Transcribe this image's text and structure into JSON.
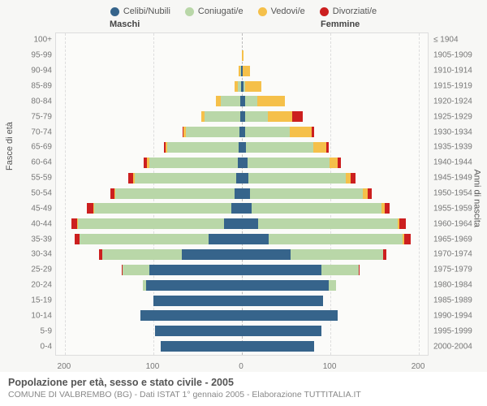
{
  "chart": {
    "type": "population-pyramid",
    "background_color": "#f7f7f5",
    "plot_background": "#fbfbf9",
    "grid_color": "#dddddd",
    "center_line_color": "#bbbbbb",
    "text_color": "#777777",
    "legend": [
      {
        "label": "Celibi/Nubili",
        "color": "#36648b"
      },
      {
        "label": "Coniugati/e",
        "color": "#b9d7a8"
      },
      {
        "label": "Vedovi/e",
        "color": "#f5c04a"
      },
      {
        "label": "Divorziati/e",
        "color": "#cc1f1f"
      }
    ],
    "header_male": "Maschi",
    "header_female": "Femmine",
    "axis_left_title": "Fasce di età",
    "axis_right_title": "Anni di nascita",
    "x_ticks": [
      -200,
      -100,
      0,
      100,
      200
    ],
    "x_tick_labels": [
      "200",
      "100",
      "0",
      "100",
      "200"
    ],
    "x_max": 210,
    "footer_title": "Popolazione per età, sesso e stato civile - 2005",
    "footer_sub": "COMUNE DI VALBREMBO (BG) - Dati ISTAT 1° gennaio 2005 - Elaborazione TUTTITALIA.IT",
    "rows": [
      {
        "age": "100+",
        "year": "≤ 1904",
        "m": [
          0,
          0,
          0,
          0
        ],
        "f": [
          0,
          0,
          0,
          0
        ]
      },
      {
        "age": "95-99",
        "year": "1905-1909",
        "m": [
          0,
          0,
          0,
          0
        ],
        "f": [
          0,
          0,
          2,
          0
        ]
      },
      {
        "age": "90-94",
        "year": "1910-1914",
        "m": [
          1,
          1,
          2,
          0
        ],
        "f": [
          1,
          0,
          8,
          0
        ]
      },
      {
        "age": "85-89",
        "year": "1915-1919",
        "m": [
          1,
          4,
          3,
          0
        ],
        "f": [
          2,
          2,
          18,
          0
        ]
      },
      {
        "age": "80-84",
        "year": "1920-1924",
        "m": [
          2,
          22,
          5,
          0
        ],
        "f": [
          4,
          13,
          32,
          0
        ]
      },
      {
        "age": "75-79",
        "year": "1925-1929",
        "m": [
          2,
          40,
          4,
          0
        ],
        "f": [
          4,
          25,
          28,
          12
        ]
      },
      {
        "age": "70-74",
        "year": "1930-1934",
        "m": [
          3,
          60,
          3,
          1
        ],
        "f": [
          4,
          50,
          25,
          3
        ]
      },
      {
        "age": "65-69",
        "year": "1935-1939",
        "m": [
          4,
          80,
          2,
          2
        ],
        "f": [
          5,
          76,
          14,
          3
        ]
      },
      {
        "age": "60-64",
        "year": "1940-1944",
        "m": [
          5,
          100,
          2,
          4
        ],
        "f": [
          6,
          93,
          9,
          4
        ]
      },
      {
        "age": "55-59",
        "year": "1945-1949",
        "m": [
          6,
          115,
          2,
          5
        ],
        "f": [
          7,
          110,
          6,
          5
        ]
      },
      {
        "age": "50-54",
        "year": "1950-1954",
        "m": [
          8,
          135,
          1,
          5
        ],
        "f": [
          9,
          128,
          5,
          5
        ]
      },
      {
        "age": "45-49",
        "year": "1955-1959",
        "m": [
          12,
          155,
          1,
          7
        ],
        "f": [
          11,
          147,
          3,
          6
        ]
      },
      {
        "age": "40-44",
        "year": "1960-1964",
        "m": [
          20,
          165,
          1,
          7
        ],
        "f": [
          18,
          158,
          2,
          7
        ]
      },
      {
        "age": "35-39",
        "year": "1965-1969",
        "m": [
          38,
          145,
          0,
          6
        ],
        "f": [
          30,
          152,
          1,
          8
        ]
      },
      {
        "age": "30-34",
        "year": "1970-1974",
        "m": [
          68,
          90,
          0,
          3
        ],
        "f": [
          55,
          105,
          0,
          3
        ]
      },
      {
        "age": "25-29",
        "year": "1975-1979",
        "m": [
          105,
          30,
          0,
          1
        ],
        "f": [
          90,
          42,
          0,
          1
        ]
      },
      {
        "age": "20-24",
        "year": "1980-1984",
        "m": [
          108,
          4,
          0,
          0
        ],
        "f": [
          98,
          8,
          0,
          0
        ]
      },
      {
        "age": "15-19",
        "year": "1985-1989",
        "m": [
          100,
          0,
          0,
          0
        ],
        "f": [
          92,
          0,
          0,
          0
        ]
      },
      {
        "age": "10-14",
        "year": "1990-1994",
        "m": [
          115,
          0,
          0,
          0
        ],
        "f": [
          108,
          0,
          0,
          0
        ]
      },
      {
        "age": "5-9",
        "year": "1995-1999",
        "m": [
          98,
          0,
          0,
          0
        ],
        "f": [
          90,
          0,
          0,
          0
        ]
      },
      {
        "age": "0-4",
        "year": "2000-2004",
        "m": [
          92,
          0,
          0,
          0
        ],
        "f": [
          82,
          0,
          0,
          0
        ]
      }
    ]
  }
}
